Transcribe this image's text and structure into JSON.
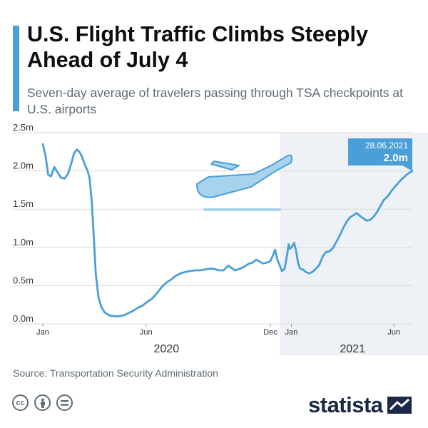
{
  "header": {
    "title": "U.S. Flight Traffic Climbs Steeply Ahead of July 4",
    "subtitle": "Seven-day average of travelers passing through TSA checkpoints at U.S. airports"
  },
  "footer": {
    "source": "Source: Transportation Security Administration",
    "brand": "statista",
    "license_icons": [
      "creative-commons-icon",
      "attribution-person-icon",
      "no-derivatives-icon"
    ]
  },
  "colors": {
    "accent": "#4a9fd8",
    "line": "#4a9fd8",
    "shade_2021": "#eef2f6",
    "grid": "#d9d9d9",
    "axis_text": "#333333",
    "brand_dark": "#1b2a44"
  },
  "chart_data": {
    "type": "line",
    "x_type": "date",
    "ylim": [
      0,
      2500000
    ],
    "xlim": [
      "2020-01-01",
      "2021-06-28"
    ],
    "y_ticks": [
      {
        "value": 0,
        "label": "0.0m"
      },
      {
        "value": 500000,
        "label": "0.5m"
      },
      {
        "value": 1000000,
        "label": "1.0m"
      },
      {
        "value": 1500000,
        "label": "1.5m"
      },
      {
        "value": 2000000,
        "label": "2.0m"
      },
      {
        "value": 2500000,
        "label": "2.5m"
      }
    ],
    "x_ticks": [
      {
        "date": "2020-01-01",
        "label": "Jan"
      },
      {
        "date": "2020-06-01",
        "label": "Jun"
      },
      {
        "date": "2020-12-01",
        "label": "Dec"
      },
      {
        "date": "2021-01-01",
        "label": "Jan"
      },
      {
        "date": "2021-06-01",
        "label": "Jun"
      }
    ],
    "year_labels": [
      {
        "date": "2020-07-01",
        "label": "2020"
      },
      {
        "date": "2021-04-01",
        "label": "2021"
      }
    ],
    "shaded_region": {
      "from": "2020-12-15",
      "to": "2021-06-28"
    },
    "grid": true,
    "annotation": {
      "date": "2021-06-28",
      "value": 2000000,
      "date_label": "28.06.2021",
      "value_label": "2.0m"
    },
    "series": [
      {
        "points": [
          [
            "2020-01-01",
            2350000
          ],
          [
            "2020-01-05",
            2200000
          ],
          [
            "2020-01-09",
            1950000
          ],
          [
            "2020-01-13",
            1930000
          ],
          [
            "2020-01-18",
            2050000
          ],
          [
            "2020-01-23",
            1980000
          ],
          [
            "2020-01-28",
            1910000
          ],
          [
            "2020-02-02",
            1900000
          ],
          [
            "2020-02-07",
            1960000
          ],
          [
            "2020-02-12",
            2100000
          ],
          [
            "2020-02-16",
            2230000
          ],
          [
            "2020-02-20",
            2280000
          ],
          [
            "2020-02-24",
            2250000
          ],
          [
            "2020-02-28",
            2180000
          ],
          [
            "2020-03-03",
            2080000
          ],
          [
            "2020-03-07",
            2000000
          ],
          [
            "2020-03-10",
            1900000
          ],
          [
            "2020-03-13",
            1600000
          ],
          [
            "2020-03-16",
            1150000
          ],
          [
            "2020-03-19",
            650000
          ],
          [
            "2020-03-23",
            350000
          ],
          [
            "2020-03-27",
            220000
          ],
          [
            "2020-04-01",
            150000
          ],
          [
            "2020-04-08",
            110000
          ],
          [
            "2020-04-15",
            100000
          ],
          [
            "2020-04-22",
            100000
          ],
          [
            "2020-04-29",
            110000
          ],
          [
            "2020-05-06",
            140000
          ],
          [
            "2020-05-13",
            170000
          ],
          [
            "2020-05-20",
            210000
          ],
          [
            "2020-05-27",
            240000
          ],
          [
            "2020-06-03",
            290000
          ],
          [
            "2020-06-10",
            330000
          ],
          [
            "2020-06-17",
            400000
          ],
          [
            "2020-06-24",
            480000
          ],
          [
            "2020-07-01",
            540000
          ],
          [
            "2020-07-08",
            580000
          ],
          [
            "2020-07-15",
            630000
          ],
          [
            "2020-07-22",
            660000
          ],
          [
            "2020-07-29",
            680000
          ],
          [
            "2020-08-05",
            690000
          ],
          [
            "2020-08-12",
            700000
          ],
          [
            "2020-08-19",
            700000
          ],
          [
            "2020-08-26",
            710000
          ],
          [
            "2020-09-02",
            720000
          ],
          [
            "2020-09-09",
            720000
          ],
          [
            "2020-09-16",
            700000
          ],
          [
            "2020-09-23",
            700000
          ],
          [
            "2020-09-30",
            760000
          ],
          [
            "2020-10-05",
            730000
          ],
          [
            "2020-10-10",
            700000
          ],
          [
            "2020-10-17",
            720000
          ],
          [
            "2020-10-24",
            750000
          ],
          [
            "2020-10-31",
            790000
          ],
          [
            "2020-11-05",
            800000
          ],
          [
            "2020-11-10",
            840000
          ],
          [
            "2020-11-14",
            820000
          ],
          [
            "2020-11-20",
            790000
          ],
          [
            "2020-11-26",
            800000
          ],
          [
            "2020-12-01",
            820000
          ],
          [
            "2020-12-05",
            900000
          ],
          [
            "2020-12-08",
            970000
          ],
          [
            "2020-12-11",
            850000
          ],
          [
            "2020-12-14",
            780000
          ],
          [
            "2020-12-18",
            690000
          ],
          [
            "2020-12-22",
            720000
          ],
          [
            "2020-12-26",
            920000
          ],
          [
            "2020-12-28",
            1040000
          ],
          [
            "2020-12-30",
            980000
          ],
          [
            "2021-01-02",
            1010000
          ],
          [
            "2021-01-05",
            1060000
          ],
          [
            "2021-01-08",
            950000
          ],
          [
            "2021-01-11",
            790000
          ],
          [
            "2021-01-14",
            720000
          ],
          [
            "2021-01-18",
            710000
          ],
          [
            "2021-01-22",
            680000
          ],
          [
            "2021-01-27",
            660000
          ],
          [
            "2021-02-01",
            680000
          ],
          [
            "2021-02-06",
            720000
          ],
          [
            "2021-02-11",
            770000
          ],
          [
            "2021-02-16",
            880000
          ],
          [
            "2021-02-21",
            940000
          ],
          [
            "2021-02-26",
            950000
          ],
          [
            "2021-03-03",
            990000
          ],
          [
            "2021-03-08",
            1070000
          ],
          [
            "2021-03-13",
            1150000
          ],
          [
            "2021-03-18",
            1250000
          ],
          [
            "2021-03-23",
            1330000
          ],
          [
            "2021-03-28",
            1390000
          ],
          [
            "2021-04-02",
            1420000
          ],
          [
            "2021-04-07",
            1450000
          ],
          [
            "2021-04-12",
            1410000
          ],
          [
            "2021-04-17",
            1380000
          ],
          [
            "2021-04-22",
            1350000
          ],
          [
            "2021-04-27",
            1360000
          ],
          [
            "2021-05-02",
            1400000
          ],
          [
            "2021-05-07",
            1460000
          ],
          [
            "2021-05-12",
            1540000
          ],
          [
            "2021-05-17",
            1620000
          ],
          [
            "2021-05-22",
            1660000
          ],
          [
            "2021-05-27",
            1720000
          ],
          [
            "2021-06-01",
            1780000
          ],
          [
            "2021-06-06",
            1830000
          ],
          [
            "2021-06-11",
            1880000
          ],
          [
            "2021-06-16",
            1920000
          ],
          [
            "2021-06-21",
            1960000
          ],
          [
            "2021-06-28",
            2000000
          ]
        ]
      }
    ]
  }
}
